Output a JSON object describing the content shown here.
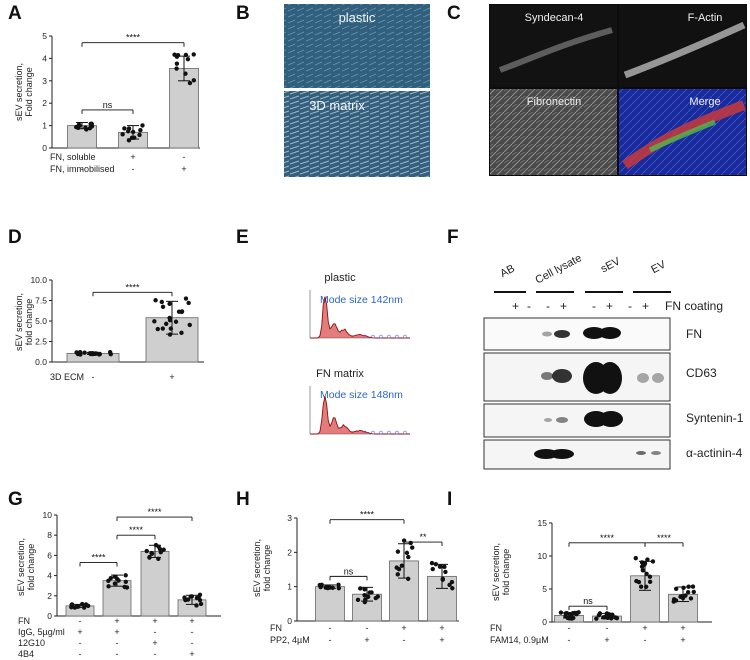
{
  "panel_labels": {
    "A": "A",
    "B": "B",
    "C": "C",
    "D": "D",
    "E": "E",
    "F": "F",
    "G": "G",
    "H": "H",
    "I": "I"
  },
  "chart_data": [
    {
      "panel": "A",
      "type": "bar",
      "ylabel": "sEV secretion,\nFold change",
      "ylim": [
        0,
        5
      ],
      "yticks": [
        0,
        1,
        2,
        3,
        4,
        5
      ],
      "values": [
        1.0,
        0.7,
        3.55
      ],
      "errors": [
        0.14,
        0.3,
        0.55
      ],
      "conditions": [
        {
          "label": "FN, soluble",
          "signs": [
            "-",
            "+",
            "-"
          ]
        },
        {
          "label": "FN, immobilised",
          "signs": [
            "-",
            "-",
            "+"
          ]
        }
      ],
      "comparisons": [
        {
          "from": 0,
          "to": 1,
          "label": "ns"
        },
        {
          "from": 0,
          "to": 2,
          "label": "****"
        }
      ]
    },
    {
      "panel": "D",
      "type": "bar",
      "ylabel": "sEV secretion,\nfold change",
      "ylim": [
        0,
        10
      ],
      "yticks": [
        "0.0",
        "2.5",
        "5.0",
        "7.5",
        "10.0"
      ],
      "values": [
        1.05,
        5.4
      ],
      "errors": [
        0.12,
        2.0
      ],
      "conditions": [
        {
          "label": "3D ECM",
          "signs": [
            "-",
            "+"
          ]
        }
      ],
      "comparisons": [
        {
          "from": 0,
          "to": 1,
          "label": "****"
        }
      ]
    },
    {
      "panel": "G",
      "type": "bar",
      "ylabel": "sEV secretion,\nfold change",
      "ylim": [
        0,
        10
      ],
      "yticks": [
        0,
        2,
        4,
        6,
        8,
        10
      ],
      "values": [
        1.0,
        3.5,
        6.4,
        1.6
      ],
      "errors": [
        0.15,
        0.55,
        0.6,
        0.45
      ],
      "conditions": [
        {
          "label": "FN",
          "signs": [
            "-",
            "+",
            "+",
            "+"
          ]
        },
        {
          "label": "IgG, 5µg/ml",
          "signs": [
            "+",
            "+",
            "-",
            "-"
          ]
        },
        {
          "label": "12G10",
          "signs": [
            "-",
            "-",
            "+",
            "-"
          ]
        },
        {
          "label": "4B4",
          "signs": [
            "-",
            "-",
            "-",
            "+"
          ]
        }
      ],
      "comparisons": [
        {
          "from": 0,
          "to": 1,
          "label": "****"
        },
        {
          "from": 1,
          "to": 2,
          "label": "****"
        },
        {
          "from": 1,
          "to": 3,
          "label": "****"
        }
      ]
    },
    {
      "panel": "H",
      "type": "bar",
      "ylabel": "sEV secretion,\nfold change",
      "ylim": [
        0,
        3
      ],
      "yticks": [
        0,
        1,
        2,
        3
      ],
      "values": [
        1.0,
        0.78,
        1.75,
        1.3
      ],
      "errors": [
        0.05,
        0.2,
        0.5,
        0.35
      ],
      "conditions": [
        {
          "label": "FN",
          "signs": [
            "-",
            "-",
            "+",
            "+"
          ]
        },
        {
          "label": "PP2, 4µM",
          "signs": [
            "-",
            "+",
            "-",
            "+"
          ]
        }
      ],
      "comparisons": [
        {
          "from": 0,
          "to": 1,
          "label": "ns"
        },
        {
          "from": 0,
          "to": 2,
          "label": "****"
        },
        {
          "from": 2,
          "to": 3,
          "label": "**"
        }
      ]
    },
    {
      "panel": "I",
      "type": "bar",
      "ylabel": "sEV secretion,\nfold change",
      "ylim": [
        0,
        15
      ],
      "yticks": [
        0,
        5,
        10,
        15
      ],
      "values": [
        1.0,
        0.9,
        7.0,
        4.2
      ],
      "errors": [
        0.4,
        0.4,
        2.2,
        1.1
      ],
      "conditions": [
        {
          "label": "FN",
          "signs": [
            "-",
            "-",
            "+",
            "+"
          ]
        },
        {
          "label": "FAM14, 0.9µM",
          "signs": [
            "-",
            "+",
            "-",
            "+"
          ]
        }
      ],
      "comparisons": [
        {
          "from": 0,
          "to": 1,
          "label": "ns"
        },
        {
          "from": 0,
          "to": 2,
          "label": "****"
        },
        {
          "from": 2,
          "to": 3,
          "label": "****"
        }
      ]
    }
  ],
  "panel_b": {
    "top_label": "plastic",
    "bottom_label": "3D matrix"
  },
  "panel_c": {
    "tiles": [
      "Syndecan-4",
      "F-Actin",
      "Fibronectin",
      "Merge"
    ]
  },
  "panel_e": {
    "plots": [
      {
        "title": "plastic",
        "mode_text": "Mode size 142nm"
      },
      {
        "title": "FN matrix",
        "mode_text": "Mode size 148nm"
      }
    ],
    "mode_color": "#2a66c8",
    "trace_color": "#cc1111"
  },
  "panel_f": {
    "group_labels": [
      "AB",
      "Cell lysate",
      "sEV",
      "EV"
    ],
    "lane_signs": [
      "+",
      "-",
      "-",
      "+",
      "-",
      "+",
      "-",
      "+"
    ],
    "coating_label": "FN coating",
    "blot_labels": [
      "FN",
      "CD63",
      "Syntenin-1",
      "α-actinin-4"
    ]
  }
}
